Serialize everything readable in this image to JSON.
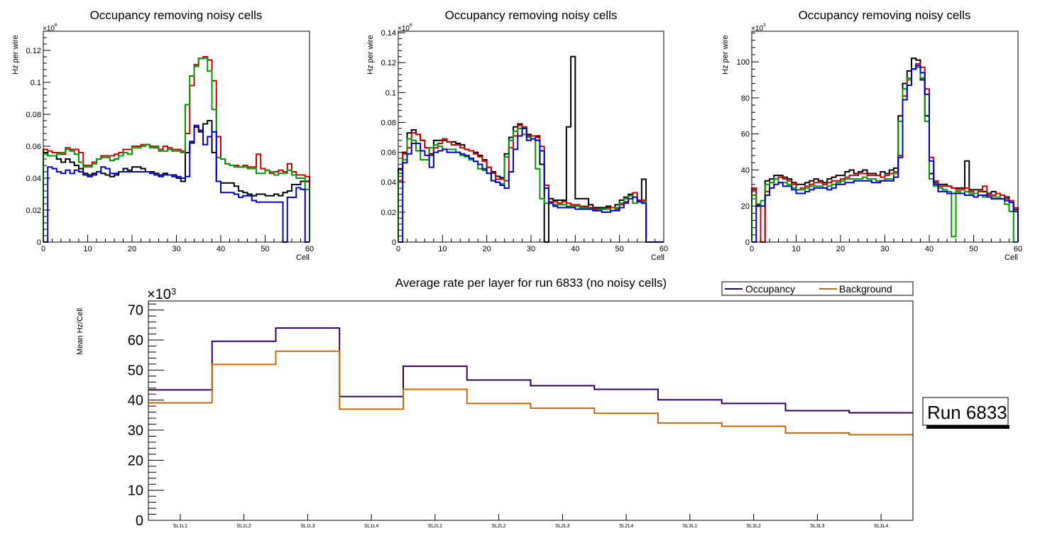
{
  "chart_data": [
    {
      "type": "line",
      "style": "step-histogram",
      "title": "Occupancy removing noisy cells",
      "xlabel": "Cell",
      "ylabel": "Hz per wire",
      "y_multiplier": "×10^6",
      "xlim": [
        0,
        60
      ],
      "ylim": [
        0,
        0.132
      ],
      "xticks": [
        "0",
        "10",
        "20",
        "30",
        "40",
        "50",
        "60"
      ],
      "yticks": [
        "0",
        "0.02",
        "0.04",
        "0.06",
        "0.08",
        "0.1",
        "0.12"
      ],
      "ytick_values": [
        0,
        0.02,
        0.04,
        0.06,
        0.08,
        0.1,
        0.12
      ],
      "series": [
        {
          "name": "black",
          "color": "#000000",
          "values": [
            0.056,
            0.054,
            0.054,
            0.052,
            0.05,
            0.052,
            0.05,
            0.048,
            0.046,
            0.043,
            0.042,
            0.043,
            0.044,
            0.043,
            0.042,
            0.041,
            0.042,
            0.044,
            0.046,
            0.045,
            0.047,
            0.047,
            0.046,
            0.044,
            0.044,
            0.043,
            0.042,
            0.043,
            0.042,
            0.042,
            0.04,
            0.038,
            0.056,
            0.062,
            0.072,
            0.069,
            0.074,
            0.076,
            0.056,
            0.038,
            0.037,
            0.037,
            0.037,
            0.035,
            0.032,
            0.031,
            0.03,
            0.029,
            0.03,
            0.03,
            0.029,
            0.029,
            0.03,
            0.029,
            0.031,
            0.032,
            0.036,
            0.036,
            0.038,
            0.038
          ]
        },
        {
          "name": "red",
          "color": "#cc0000",
          "values": [
            0.058,
            0.057,
            0.056,
            0.056,
            0.055,
            0.059,
            0.058,
            0.058,
            0.056,
            0.048,
            0.048,
            0.05,
            0.052,
            0.054,
            0.054,
            0.054,
            0.055,
            0.056,
            0.058,
            0.058,
            0.06,
            0.06,
            0.061,
            0.061,
            0.06,
            0.059,
            0.058,
            0.06,
            0.059,
            0.058,
            0.058,
            0.057,
            0.068,
            0.098,
            0.111,
            0.115,
            0.116,
            0.114,
            0.101,
            0.066,
            0.052,
            0.049,
            0.048,
            0.048,
            0.047,
            0.048,
            0.047,
            0.047,
            0.055,
            0.046,
            0.045,
            0.043,
            0.044,
            0.045,
            0.044,
            0.049,
            0.044,
            0.042,
            0.042,
            0.041
          ]
        },
        {
          "name": "green",
          "color": "#009900",
          "values": [
            0.055,
            0.054,
            0.054,
            0.055,
            0.056,
            0.058,
            0.057,
            0.055,
            0.05,
            0.047,
            0.047,
            0.049,
            0.052,
            0.053,
            0.053,
            0.051,
            0.052,
            0.054,
            0.056,
            0.055,
            0.059,
            0.059,
            0.06,
            0.061,
            0.059,
            0.06,
            0.057,
            0.057,
            0.058,
            0.057,
            0.057,
            0.056,
            0.086,
            0.104,
            0.11,
            0.115,
            0.115,
            0.107,
            0.083,
            0.053,
            0.052,
            0.049,
            0.048,
            0.047,
            0.047,
            0.047,
            0.046,
            0.046,
            0.043,
            0.043,
            0.045,
            0.044,
            0.042,
            0.043,
            0.043,
            0.045,
            0.042,
            0.04,
            0.04,
            0.033
          ]
        },
        {
          "name": "blue",
          "color": "#0000cc",
          "values": [
            0.0,
            0.047,
            0.046,
            0.044,
            0.043,
            0.045,
            0.043,
            0.045,
            0.044,
            0.042,
            0.041,
            0.042,
            0.044,
            0.047,
            0.046,
            0.043,
            0.043,
            0.044,
            0.044,
            0.044,
            0.044,
            0.044,
            0.044,
            0.044,
            0.043,
            0.042,
            0.041,
            0.042,
            0.042,
            0.041,
            0.041,
            0.04,
            0.041,
            0.063,
            0.073,
            0.07,
            0.061,
            0.066,
            0.069,
            0.038,
            0.031,
            0.031,
            0.031,
            0.03,
            0.028,
            0.029,
            0.029,
            0.026,
            0.025,
            0.025,
            0.025,
            0.025,
            0.025,
            0.025,
            0.0,
            0.028,
            0.028,
            0.034,
            0.033,
            0.0
          ]
        }
      ]
    },
    {
      "type": "line",
      "style": "step-histogram",
      "title": "Occupancy removing noisy cells",
      "xlabel": "Cell",
      "ylabel": "Hz per wire",
      "y_multiplier": "×10^6",
      "xlim": [
        0,
        60
      ],
      "ylim": [
        0,
        0.141
      ],
      "xticks": [
        "0",
        "10",
        "20",
        "30",
        "40",
        "50",
        "60"
      ],
      "yticks": [
        "0",
        "0.02",
        "0.04",
        "0.06",
        "0.08",
        "0.1",
        "0.12",
        "0.14"
      ],
      "ytick_values": [
        0,
        0.02,
        0.04,
        0.06,
        0.08,
        0.1,
        0.12,
        0.14
      ],
      "series": [
        {
          "name": "black",
          "color": "#000000",
          "values": [
            0.049,
            0.06,
            0.073,
            0.075,
            0.072,
            0.068,
            0.063,
            0.059,
            0.068,
            0.068,
            0.068,
            0.067,
            0.067,
            0.066,
            0.065,
            0.062,
            0.061,
            0.06,
            0.058,
            0.055,
            0.05,
            0.047,
            0.044,
            0.043,
            0.059,
            0.07,
            0.077,
            0.079,
            0.076,
            0.072,
            0.071,
            0.071,
            0.052,
            0.0,
            0.029,
            0.028,
            0.028,
            0.028,
            0.077,
            0.124,
            0.029,
            0.029,
            0.029,
            0.025,
            0.023,
            0.023,
            0.023,
            0.024,
            0.023,
            0.025,
            0.028,
            0.03,
            0.032,
            0.033,
            0.027,
            0.042,
            0.0,
            0.0,
            0.0,
            0.0
          ]
        },
        {
          "name": "red",
          "color": "#cc0000",
          "values": [
            0.041,
            0.059,
            0.063,
            0.073,
            0.072,
            0.068,
            0.063,
            0.058,
            0.063,
            0.066,
            0.069,
            0.067,
            0.065,
            0.065,
            0.063,
            0.062,
            0.061,
            0.059,
            0.057,
            0.054,
            0.05,
            0.046,
            0.042,
            0.042,
            0.041,
            0.063,
            0.071,
            0.078,
            0.077,
            0.071,
            0.071,
            0.07,
            0.064,
            0.038,
            0.027,
            0.027,
            0.026,
            0.027,
            0.026,
            0.025,
            0.025,
            0.024,
            0.024,
            0.023,
            0.022,
            0.022,
            0.022,
            0.023,
            0.023,
            0.022,
            0.025,
            0.027,
            0.031,
            0.033,
            0.028,
            0.028,
            0.0,
            0.0,
            0.0,
            0.0
          ]
        },
        {
          "name": "green",
          "color": "#009900",
          "values": [
            0.046,
            0.055,
            0.069,
            0.068,
            0.061,
            0.055,
            0.055,
            0.063,
            0.065,
            0.064,
            0.062,
            0.062,
            0.062,
            0.06,
            0.058,
            0.057,
            0.055,
            0.054,
            0.049,
            0.048,
            0.046,
            0.041,
            0.04,
            0.039,
            0.057,
            0.068,
            0.074,
            0.076,
            0.072,
            0.07,
            0.069,
            0.049,
            0.029,
            0.026,
            0.026,
            0.025,
            0.025,
            0.025,
            0.024,
            0.024,
            0.024,
            0.023,
            0.023,
            0.022,
            0.021,
            0.022,
            0.022,
            0.022,
            0.021,
            0.023,
            0.026,
            0.029,
            0.031,
            0.026,
            0.027,
            0.027,
            0.0,
            0.0,
            0.0,
            0.0
          ]
        },
        {
          "name": "blue",
          "color": "#0000cc",
          "values": [
            0.0,
            0.053,
            0.059,
            0.066,
            0.066,
            0.061,
            0.058,
            0.05,
            0.06,
            0.061,
            0.062,
            0.06,
            0.06,
            0.06,
            0.059,
            0.058,
            0.056,
            0.054,
            0.052,
            0.049,
            0.046,
            0.041,
            0.04,
            0.038,
            0.036,
            0.047,
            0.062,
            0.071,
            0.076,
            0.068,
            0.069,
            0.068,
            0.061,
            0.036,
            0.026,
            0.024,
            0.023,
            0.023,
            0.023,
            0.023,
            0.022,
            0.022,
            0.022,
            0.022,
            0.021,
            0.021,
            0.02,
            0.02,
            0.021,
            0.021,
            0.023,
            0.026,
            0.029,
            0.03,
            0.027,
            0.026,
            0.0,
            0.0,
            0.0,
            0.0
          ]
        }
      ]
    },
    {
      "type": "line",
      "style": "step-histogram",
      "title": "Occupancy removing noisy cells",
      "xlabel": "Cell",
      "ylabel": "Hz per wire",
      "y_multiplier": "×10^3",
      "xlim": [
        0,
        60
      ],
      "ylim": [
        0,
        117
      ],
      "xticks": [
        "0",
        "10",
        "20",
        "30",
        "40",
        "50",
        "60"
      ],
      "yticks": [
        "0",
        "20",
        "40",
        "60",
        "80",
        "100"
      ],
      "ytick_values": [
        0,
        20,
        40,
        60,
        80,
        100
      ],
      "series": [
        {
          "name": "black",
          "color": "#000000",
          "values": [
            29,
            21,
            0,
            34,
            35,
            37,
            37,
            36,
            35,
            33,
            32,
            32,
            33,
            34,
            35,
            34,
            33,
            35,
            36,
            37,
            37,
            39,
            40,
            38,
            39,
            40,
            38,
            38,
            37,
            39,
            38,
            40,
            41,
            70,
            88,
            95,
            102,
            101,
            90,
            70,
            38,
            33,
            32,
            32,
            31,
            30,
            30,
            30,
            45,
            29,
            29,
            29,
            28,
            27,
            28,
            27,
            26,
            25,
            22,
            18
          ]
        },
        {
          "name": "red",
          "color": "#cc0000",
          "values": [
            30,
            20,
            0,
            28,
            33,
            35,
            36,
            35,
            34,
            32,
            29,
            30,
            31,
            32,
            33,
            33,
            32,
            33,
            34,
            34,
            35,
            36,
            37,
            37,
            38,
            38,
            37,
            37,
            37,
            36,
            37,
            38,
            39,
            48,
            81,
            90,
            96,
            99,
            97,
            85,
            47,
            34,
            31,
            31,
            31,
            30,
            29,
            29,
            30,
            28,
            27,
            28,
            31,
            26,
            26,
            27,
            26,
            24,
            23,
            19
          ]
        },
        {
          "name": "green",
          "color": "#009900",
          "values": [
            26,
            20,
            23,
            32,
            33,
            35,
            33,
            33,
            32,
            30,
            29,
            29,
            30,
            31,
            31,
            31,
            30,
            31,
            32,
            33,
            34,
            35,
            35,
            35,
            35,
            36,
            35,
            35,
            34,
            34,
            35,
            35,
            38,
            67,
            85,
            91,
            96,
            97,
            91,
            67,
            35,
            31,
            30,
            29,
            28,
            3,
            28,
            27,
            28,
            27,
            27,
            26,
            25,
            25,
            25,
            25,
            24,
            21,
            17,
            0
          ]
        },
        {
          "name": "blue",
          "color": "#0000cc",
          "values": [
            0,
            20,
            20,
            26,
            30,
            32,
            33,
            31,
            31,
            29,
            27,
            27,
            28,
            29,
            30,
            30,
            30,
            29,
            30,
            32,
            32,
            33,
            33,
            34,
            34,
            34,
            34,
            33,
            33,
            34,
            34,
            34,
            36,
            47,
            79,
            87,
            96,
            98,
            94,
            82,
            45,
            32,
            28,
            28,
            27,
            27,
            27,
            27,
            26,
            26,
            25,
            26,
            26,
            25,
            24,
            24,
            24,
            23,
            22,
            17
          ]
        }
      ]
    },
    {
      "type": "line",
      "style": "step-histogram",
      "title": "Average rate per layer for run 6833 (no noisy cells)",
      "xlabel": "",
      "ylabel": "Mean Hz/Cell",
      "y_multiplier": "×10^3",
      "ylim": [
        0,
        73
      ],
      "categories": [
        "SL1L1",
        "SL1L2",
        "SL1L3",
        "SL1L4",
        "SL2L1",
        "SL2L2",
        "SL2L3",
        "SL2L4",
        "SL3L1",
        "SL3L2",
        "SL3L3",
        "SL3L4"
      ],
      "yticks": [
        "0",
        "10",
        "20",
        "30",
        "40",
        "50",
        "60",
        "70"
      ],
      "ytick_values": [
        0,
        10,
        20,
        30,
        40,
        50,
        60,
        70
      ],
      "series": [
        {
          "name": "Occupancy",
          "color": "#330066",
          "values": [
            43.4,
            59.6,
            64.0,
            41.2,
            51.3,
            46.7,
            44.8,
            43.6,
            40.1,
            38.9,
            36.5,
            35.8
          ]
        },
        {
          "name": "Background",
          "color": "#cc6600",
          "values": [
            39.1,
            51.9,
            56.3,
            37.0,
            43.6,
            38.9,
            37.3,
            35.6,
            32.4,
            31.3,
            29.1,
            28.5
          ]
        }
      ],
      "legend": [
        "Occupancy",
        "Background"
      ],
      "legend_position": "top-right",
      "annotation": "Run 6833"
    }
  ]
}
